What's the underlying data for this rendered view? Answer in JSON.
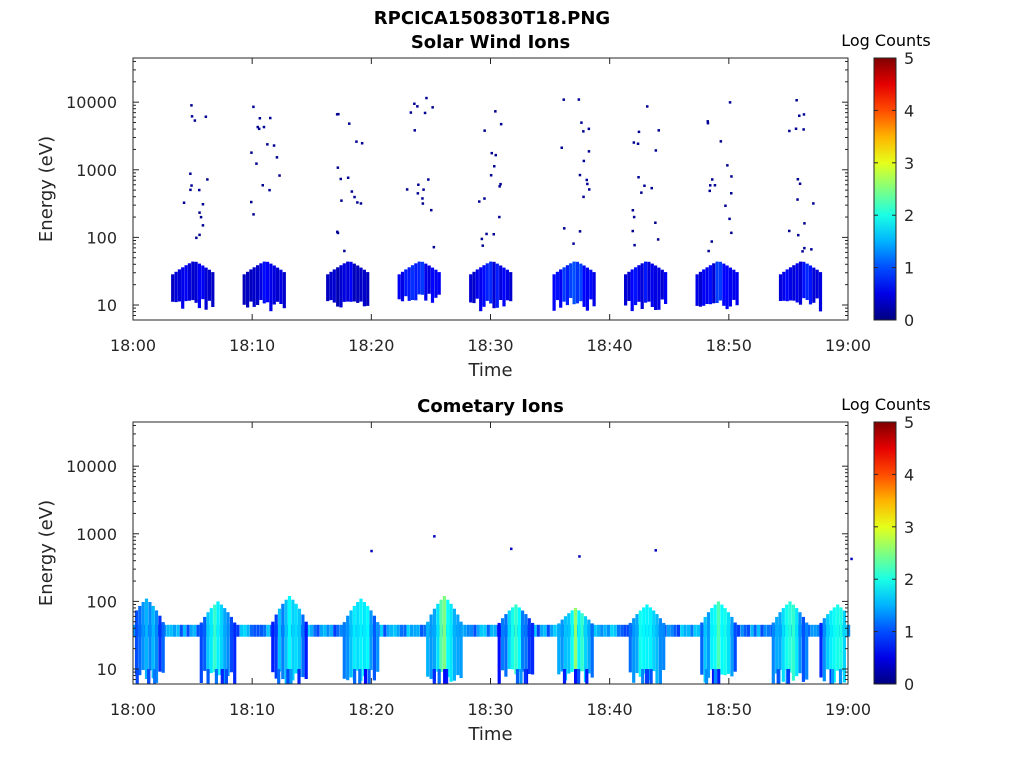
{
  "figure_title": "RPCICA150830T18.PNG",
  "chart_data": [
    {
      "type": "heatmap",
      "title": "Solar Wind Ions",
      "xlabel": "Time",
      "ylabel": "Energy (eV)",
      "y_scale": "log",
      "x_range": [
        "18:00",
        "19:00"
      ],
      "y_range": [
        6,
        45000
      ],
      "x_ticks": [
        "18:00",
        "18:10",
        "18:20",
        "18:30",
        "18:40",
        "18:50",
        "19:00"
      ],
      "y_ticks": [
        "10",
        "100",
        "1000",
        "10000"
      ],
      "colorbar": {
        "label": "Log Counts",
        "range": [
          0,
          5
        ],
        "ticks": [
          "0",
          "1",
          "2",
          "3",
          "4",
          "5"
        ]
      },
      "bursts": [
        {
          "center": "18:05",
          "low_band": {
            "energy": [
              8,
              45
            ],
            "level": 0.6
          }
        },
        {
          "center": "18:11",
          "low_band": {
            "energy": [
              8,
              45
            ],
            "level": 0.6
          }
        },
        {
          "center": "18:18",
          "low_band": {
            "energy": [
              8,
              45
            ],
            "level": 0.5
          }
        },
        {
          "center": "18:24",
          "low_band": {
            "energy": [
              10,
              45
            ],
            "level": 0.9
          }
        },
        {
          "center": "18:30",
          "low_band": {
            "energy": [
              8,
              45
            ],
            "level": 0.7
          }
        },
        {
          "center": "18:37",
          "low_band": {
            "energy": [
              8,
              45
            ],
            "level": 1.0
          }
        },
        {
          "center": "18:43",
          "low_band": {
            "energy": [
              8,
              45
            ],
            "level": 0.8
          }
        },
        {
          "center": "18:49",
          "low_band": {
            "energy": [
              8,
              45
            ],
            "level": 0.8
          }
        },
        {
          "center": "18:56",
          "low_band": {
            "energy": [
              8,
              45
            ],
            "level": 0.8
          }
        }
      ]
    },
    {
      "type": "heatmap",
      "title": "Cometary Ions",
      "xlabel": "Time",
      "ylabel": "Energy (eV)",
      "y_scale": "log",
      "x_range": [
        "18:00",
        "19:00"
      ],
      "y_range": [
        6,
        45000
      ],
      "x_ticks": [
        "18:00",
        "18:10",
        "18:20",
        "18:30",
        "18:40",
        "18:50",
        "19:00"
      ],
      "y_ticks": [
        "10",
        "100",
        "1000",
        "10000"
      ],
      "colorbar": {
        "label": "Log Counts",
        "range": [
          0,
          5
        ],
        "ticks": [
          "0",
          "1",
          "2",
          "3",
          "4",
          "5"
        ]
      },
      "continuous_band": {
        "energy": [
          30,
          45
        ],
        "level": 1.3
      },
      "bursts": [
        {
          "center": "18:01",
          "peak_energy": 110,
          "level": 1.7
        },
        {
          "center": "18:07",
          "peak_energy": 100,
          "level": 2.0
        },
        {
          "center": "18:13",
          "peak_energy": 120,
          "level": 1.8
        },
        {
          "center": "18:19",
          "peak_energy": 110,
          "level": 2.0
        },
        {
          "center": "18:26",
          "peak_energy": 120,
          "level": 2.3
        },
        {
          "center": "18:32",
          "peak_energy": 90,
          "level": 1.8
        },
        {
          "center": "18:37",
          "peak_energy": 80,
          "level": 2.2
        },
        {
          "center": "18:43",
          "peak_energy": 90,
          "level": 2.0
        },
        {
          "center": "18:49",
          "peak_energy": 100,
          "level": 2.1
        },
        {
          "center": "18:55",
          "peak_energy": 100,
          "level": 2.0
        },
        {
          "center": "18:59",
          "peak_energy": 90,
          "level": 2.0
        }
      ]
    }
  ]
}
